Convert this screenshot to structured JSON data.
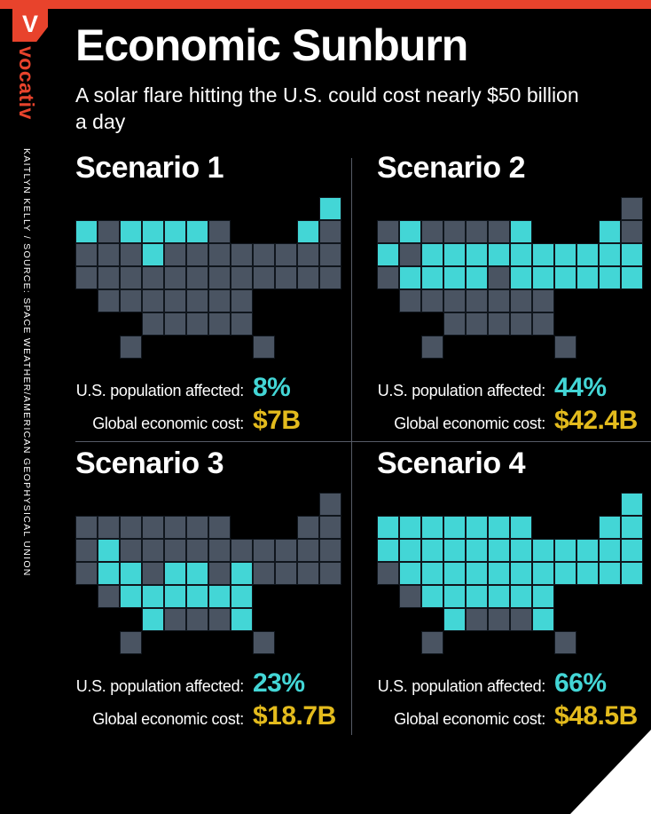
{
  "brand": {
    "logo_letter": "V",
    "logo_text": "vocativ",
    "credit": "KAITLYN KELLY / SOURCE: SPACE WEATHER/AMERICAN GEOPHYSICAL UNION"
  },
  "header": {
    "title": "Economic Sunburn",
    "subtitle": "A solar flare hitting the U.S. could cost nearly $50 billion a day"
  },
  "labels": {
    "population": "U.S. population affected:",
    "cost": "Global economic cost:"
  },
  "colors": {
    "accent_red": "#e8432c",
    "highlight_cyan": "#43d6d6",
    "value_yellow": "#e3bb1d",
    "state_gray": "#4a5462",
    "divider_gray": "#565b66",
    "background": "#000000",
    "text_white": "#ffffff"
  },
  "scenarios": [
    {
      "name": "Scenario 1",
      "population_affected": "8%",
      "global_economic_cost": "$7B",
      "highlighted_states": [
        "WA",
        "MT",
        "ND",
        "SD",
        "MN",
        "WI",
        "VT",
        "ME"
      ]
    },
    {
      "name": "Scenario 2",
      "population_affected": "44%",
      "global_economic_cost": "$42.4B",
      "highlighted_states": [
        "OR",
        "ID",
        "WY",
        "UT",
        "CO",
        "SD",
        "NE",
        "IA",
        "MO",
        "IL",
        "IN",
        "MI",
        "OH",
        "WV",
        "VA",
        "MD",
        "DE",
        "NJ",
        "PA",
        "NY",
        "VT",
        "MA",
        "CT",
        "RI"
      ]
    },
    {
      "name": "Scenario 3",
      "population_affected": "23%",
      "global_economic_cost": "$18.7B",
      "highlighted_states": [
        "NV",
        "UT",
        "CO",
        "NM",
        "KS",
        "OK",
        "MO",
        "AR",
        "KY",
        "TN",
        "VA",
        "NC",
        "SC",
        "GA"
      ]
    },
    {
      "name": "Scenario 4",
      "population_affected": "66%",
      "global_economic_cost": "$48.5B",
      "highlighted_states": [
        "WA",
        "OR",
        "NV",
        "ID",
        "MT",
        "WY",
        "UT",
        "CO",
        "NM",
        "ND",
        "SD",
        "NE",
        "KS",
        "OK",
        "MN",
        "IA",
        "MO",
        "AR",
        "WI",
        "IL",
        "MI",
        "IN",
        "OH",
        "KY",
        "TN",
        "GA",
        "SC",
        "NC",
        "VA",
        "WV",
        "MD",
        "DE",
        "NJ",
        "PA",
        "NY",
        "CT",
        "RI",
        "MA",
        "VT",
        "NH",
        "ME"
      ]
    }
  ],
  "map_grid": {
    "states": [
      {
        "id": "ME",
        "col": 11,
        "row": 0
      },
      {
        "id": "WA",
        "col": 0,
        "row": 1
      },
      {
        "id": "ID",
        "col": 1,
        "row": 1
      },
      {
        "id": "MT",
        "col": 2,
        "row": 1
      },
      {
        "id": "ND",
        "col": 3,
        "row": 1
      },
      {
        "id": "MN",
        "col": 4,
        "row": 1
      },
      {
        "id": "WI",
        "col": 5,
        "row": 1
      },
      {
        "id": "MI",
        "col": 6,
        "row": 1
      },
      {
        "id": "VT",
        "col": 10,
        "row": 1
      },
      {
        "id": "NH",
        "col": 11,
        "row": 1
      },
      {
        "id": "OR",
        "col": 0,
        "row": 2
      },
      {
        "id": "NV",
        "col": 1,
        "row": 2
      },
      {
        "id": "WY",
        "col": 2,
        "row": 2
      },
      {
        "id": "SD",
        "col": 3,
        "row": 2
      },
      {
        "id": "IA",
        "col": 4,
        "row": 2
      },
      {
        "id": "IL",
        "col": 5,
        "row": 2
      },
      {
        "id": "IN",
        "col": 6,
        "row": 2
      },
      {
        "id": "OH",
        "col": 7,
        "row": 2
      },
      {
        "id": "PA",
        "col": 8,
        "row": 2
      },
      {
        "id": "NY",
        "col": 9,
        "row": 2
      },
      {
        "id": "MA",
        "col": 10,
        "row": 2
      },
      {
        "id": "RI",
        "col": 11,
        "row": 2
      },
      {
        "id": "CA",
        "col": 0,
        "row": 3
      },
      {
        "id": "UT",
        "col": 1,
        "row": 3
      },
      {
        "id": "CO",
        "col": 2,
        "row": 3
      },
      {
        "id": "NE",
        "col": 3,
        "row": 3
      },
      {
        "id": "MO",
        "col": 4,
        "row": 3
      },
      {
        "id": "KY",
        "col": 5,
        "row": 3
      },
      {
        "id": "WV",
        "col": 6,
        "row": 3
      },
      {
        "id": "VA",
        "col": 7,
        "row": 3
      },
      {
        "id": "MD",
        "col": 8,
        "row": 3
      },
      {
        "id": "DE",
        "col": 9,
        "row": 3
      },
      {
        "id": "NJ",
        "col": 10,
        "row": 3
      },
      {
        "id": "CT",
        "col": 11,
        "row": 3
      },
      {
        "id": "AZ",
        "col": 1,
        "row": 4
      },
      {
        "id": "NM",
        "col": 2,
        "row": 4
      },
      {
        "id": "KS",
        "col": 3,
        "row": 4
      },
      {
        "id": "AR",
        "col": 4,
        "row": 4
      },
      {
        "id": "TN",
        "col": 5,
        "row": 4
      },
      {
        "id": "NC",
        "col": 6,
        "row": 4
      },
      {
        "id": "SC",
        "col": 7,
        "row": 4
      },
      {
        "id": "OK",
        "col": 3,
        "row": 5
      },
      {
        "id": "LA",
        "col": 4,
        "row": 5
      },
      {
        "id": "MS",
        "col": 5,
        "row": 5
      },
      {
        "id": "AL",
        "col": 6,
        "row": 5
      },
      {
        "id": "GA",
        "col": 7,
        "row": 5
      },
      {
        "id": "TX",
        "col": 2,
        "row": 6
      },
      {
        "id": "FL",
        "col": 8,
        "row": 6
      }
    ]
  },
  "chart_data": {
    "type": "heatmap",
    "subtype": "us-choropleth-small-multiples",
    "title": "Economic Sunburn",
    "subtitle": "A solar flare hitting the U.S. could cost nearly $50 billion a day",
    "categories": [
      "Scenario 1",
      "Scenario 2",
      "Scenario 3",
      "Scenario 4"
    ],
    "series": [
      {
        "name": "U.S. population affected (%)",
        "values": [
          8,
          44,
          23,
          66
        ]
      },
      {
        "name": "Global economic cost ($B)",
        "values": [
          7,
          42.4,
          18.7,
          48.5
        ]
      }
    ],
    "legend_position": "none",
    "grid": false,
    "highlight_color": "#43d6d6",
    "base_color": "#4a5462"
  }
}
